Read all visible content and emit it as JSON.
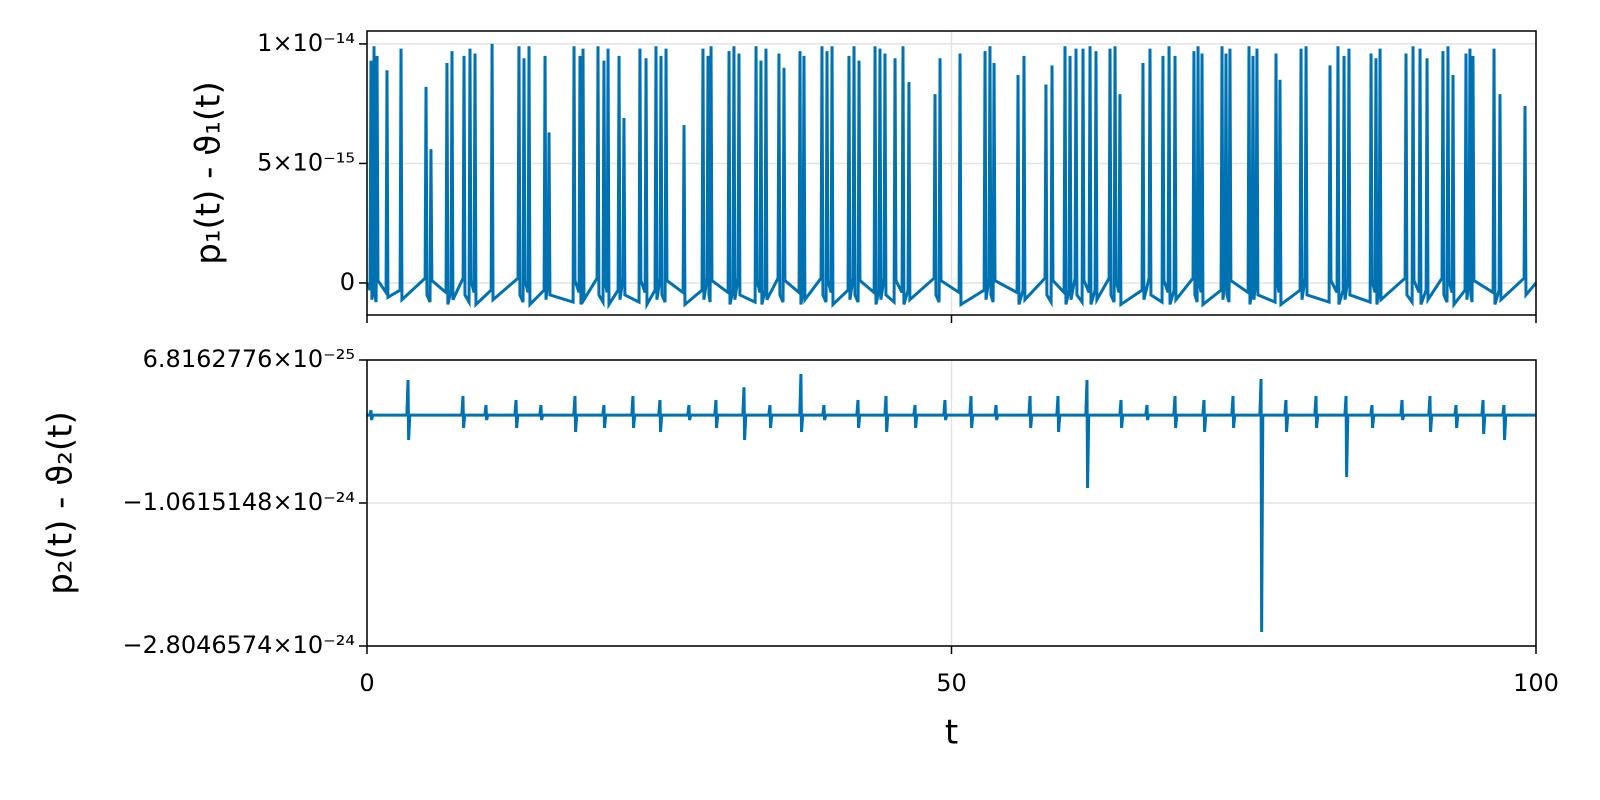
{
  "chart_data": [
    {
      "type": "line",
      "ylabel": "p₁(t) - ϑ₁(t)",
      "color": "#0072b2",
      "grid": true,
      "xlim": [
        0,
        100
      ],
      "xticks": [
        0,
        50,
        100
      ],
      "x_tick_labels": false,
      "ylim": [
        -1.34e-15,
        1.054e-14
      ],
      "yticks": [
        0,
        {
          "value": 5e-15,
          "label": "5×10⁻¹⁵"
        },
        {
          "value": 1e-14,
          "label": "1×10⁻¹⁴"
        }
      ],
      "x": [
        0,
        0.26,
        0.34,
        0.42,
        0.52,
        0.6,
        0.68,
        0.78,
        0.86,
        0.94,
        1.63,
        1.71,
        1.79,
        2.83,
        2.91,
        2.99,
        4.97,
        5.05,
        5.13,
        5.39,
        5.47,
        5.55,
        6.76,
        6.84,
        6.92,
        7.19,
        7.27,
        7.35,
        8.22,
        8.3,
        8.38,
        8.73,
        8.81,
        8.89,
        9.16,
        9.24,
        9.32,
        10.62,
        10.7,
        10.78,
        12.92,
        13.0,
        13.08,
        13.35,
        13.43,
        13.51,
        13.78,
        13.86,
        13.94,
        15.15,
        15.23,
        15.31,
        15.49,
        15.57,
        15.65,
        17.63,
        17.71,
        17.79,
        18.14,
        18.22,
        18.3,
        18.4,
        18.48,
        18.56,
        19.68,
        19.76,
        19.84,
        20.19,
        20.27,
        20.35,
        20.54,
        20.62,
        20.7,
        21.48,
        21.56,
        21.64,
        21.9,
        21.98,
        22.06,
        23.27,
        23.35,
        23.43,
        23.79,
        23.87,
        23.95,
        24.64,
        24.72,
        24.8,
        25.07,
        25.15,
        25.23,
        25.5,
        25.58,
        25.66,
        27.04,
        27.12,
        27.2,
        28.66,
        28.74,
        28.82,
        29.09,
        29.17,
        29.25,
        29.35,
        29.43,
        29.51,
        30.89,
        30.97,
        31.05,
        31.31,
        31.39,
        31.47,
        31.74,
        31.82,
        31.9,
        33.2,
        33.28,
        33.36,
        33.62,
        33.7,
        33.78,
        34.05,
        34.13,
        34.21,
        35.16,
        35.24,
        35.32,
        35.59,
        35.67,
        35.75,
        36.96,
        37.04,
        37.12,
        37.3,
        37.38,
        37.46,
        38.84,
        38.92,
        39.0,
        39.27,
        39.35,
        39.43,
        39.7,
        39.78,
        39.86,
        41.15,
        41.23,
        41.31,
        41.58,
        41.66,
        41.74,
        42.01,
        42.09,
        42.17,
        43.38,
        43.46,
        43.54,
        43.8,
        43.88,
        43.96,
        44.23,
        44.31,
        44.39,
        45.09,
        45.17,
        45.25,
        45.77,
        45.85,
        45.93,
        46.28,
        46.36,
        46.44,
        48.51,
        48.59,
        48.67,
        48.94,
        49.02,
        49.1,
        50.65,
        50.73,
        50.81,
        52.79,
        52.87,
        52.95,
        53.21,
        53.29,
        53.37,
        53.56,
        53.64,
        53.72,
        55.61,
        55.69,
        55.77,
        56.12,
        56.2,
        56.28,
        58.0,
        58.08,
        58.16,
        58.52,
        58.6,
        58.68,
        59.63,
        59.71,
        59.79,
        60.06,
        60.14,
        60.22,
        60.57,
        60.65,
        60.73,
        61.17,
        61.25,
        61.33,
        61.77,
        61.85,
        61.93,
        62.28,
        62.36,
        62.44,
        63.48,
        63.56,
        63.64,
        63.91,
        63.99,
        64.07,
        64.33,
        64.41,
        64.49,
        66.3,
        66.38,
        66.46,
        66.9,
        66.98,
        67.06,
        68.01,
        68.09,
        68.17,
        68.53,
        68.61,
        68.69,
        69.04,
        69.12,
        69.2,
        70.66,
        70.74,
        70.82,
        71.01,
        71.09,
        71.17,
        71.35,
        71.43,
        71.51,
        73.06,
        73.14,
        73.22,
        73.4,
        73.48,
        73.56,
        73.74,
        73.82,
        73.9,
        75.37,
        75.45,
        75.53,
        75.71,
        75.79,
        75.87,
        76.05,
        76.13,
        76.21,
        77.68,
        77.76,
        77.84,
        78.02,
        78.1,
        78.18,
        79.82,
        79.9,
        79.98,
        80.25,
        80.33,
        80.41,
        82.3,
        82.38,
        82.46,
        82.98,
        83.06,
        83.14,
        83.5,
        83.58,
        83.66,
        83.92,
        84.0,
        84.08,
        85.81,
        85.89,
        85.97,
        86.23,
        86.31,
        86.39,
        86.58,
        86.66,
        86.74,
        88.8,
        88.88,
        88.96,
        89.4,
        89.48,
        89.56,
        90.0,
        90.08,
        90.16,
        90.6,
        90.68,
        90.76,
        91.96,
        92.04,
        92.12,
        92.39,
        92.47,
        92.55,
        92.82,
        92.9,
        92.98,
        93.93,
        94.01,
        94.09,
        94.27,
        94.35,
        94.43,
        94.53,
        94.61,
        94.69,
        96.33,
        96.41,
        96.49,
        96.84,
        96.92,
        97.0,
        98.98,
        99.06,
        99.14,
        100
      ],
      "values": [
        0,
        -3e-16,
        9.3e-15,
        -7e-16,
        2e-16,
        9.9e-15,
        -5e-16,
        -8e-16,
        9.5e-15,
        1e-16,
        -4e-16,
        8.9e-15,
        -6e-16,
        -3e-16,
        9.8e-15,
        -7e-16,
        2e-16,
        8.2e-15,
        -5e-16,
        -8e-16,
        5.6e-15,
        1e-16,
        -4e-16,
        9.2e-15,
        -9e-16,
        -3e-16,
        9.7e-15,
        -7e-16,
        2e-16,
        9.5e-15,
        -5e-16,
        -8e-16,
        9.8e-15,
        1e-16,
        -4e-16,
        9.6e-15,
        -9e-16,
        -3e-16,
        1e-14,
        -7e-16,
        2e-16,
        9.9e-15,
        -5e-16,
        -8e-16,
        9.4e-15,
        1e-16,
        -4e-16,
        9.9e-15,
        -9e-16,
        -3e-16,
        9.5e-15,
        -7e-16,
        2e-16,
        6.3e-15,
        -5e-16,
        -8e-16,
        9.9e-15,
        1e-16,
        -4e-16,
        9.5e-15,
        -9e-16,
        -3e-16,
        9.8e-15,
        -7e-16,
        2e-16,
        9.9e-15,
        -5e-16,
        -8e-16,
        9.3e-15,
        1e-16,
        -4e-16,
        9.8e-15,
        -9e-16,
        -3e-16,
        9.5e-15,
        -7e-16,
        2e-16,
        6.9e-15,
        -5e-16,
        -8e-16,
        9.8e-15,
        1e-16,
        -4e-16,
        9.4e-15,
        -9e-16,
        -3e-16,
        9.9e-15,
        -7e-16,
        2e-16,
        9.5e-15,
        -5e-16,
        -8e-16,
        9.8e-15,
        1e-16,
        -4e-16,
        6.6e-15,
        -9e-16,
        -3e-16,
        9.8e-15,
        -7e-16,
        2e-16,
        9.5e-15,
        -5e-16,
        -8e-16,
        9.9e-15,
        1e-16,
        -4e-16,
        9.7e-15,
        -9e-16,
        -3e-16,
        9.9e-15,
        -7e-16,
        2e-16,
        9.6e-15,
        -5e-16,
        -8e-16,
        9.9e-15,
        1e-16,
        -4e-16,
        9.3e-15,
        -9e-16,
        -3e-16,
        9.8e-15,
        -7e-16,
        2e-16,
        9.6e-15,
        -5e-16,
        -8e-16,
        9e-15,
        1e-16,
        -4e-16,
        9.7e-15,
        -9e-16,
        -3e-16,
        9.5e-15,
        -7e-16,
        2e-16,
        9.9e-15,
        -5e-16,
        -8e-16,
        9.7e-15,
        1e-16,
        -4e-16,
        9.9e-15,
        -9e-16,
        -3e-16,
        9.5e-15,
        -7e-16,
        2e-16,
        9.9e-15,
        -5e-16,
        -8e-16,
        9.3e-15,
        1e-16,
        -4e-16,
        9.9e-15,
        -9e-16,
        -3e-16,
        9.8e-15,
        -7e-16,
        2e-16,
        9.6e-15,
        -5e-16,
        -8e-16,
        9.4e-15,
        1e-16,
        -4e-16,
        9.9e-15,
        -9e-16,
        -3e-16,
        8.4e-15,
        -7e-16,
        2e-16,
        7.9e-15,
        -5e-16,
        -8e-16,
        9.4e-15,
        1e-16,
        -4e-16,
        9.6e-15,
        -9e-16,
        -3e-16,
        9.7e-15,
        -7e-16,
        2e-16,
        9.9e-15,
        -5e-16,
        -8e-16,
        9.2e-15,
        1e-16,
        -4e-16,
        8.7e-15,
        -9e-16,
        -3e-16,
        9.5e-15,
        -7e-16,
        2e-16,
        8.3e-15,
        -5e-16,
        -8e-16,
        9.1e-15,
        1e-16,
        -4e-16,
        9.9e-15,
        -9e-16,
        -3e-16,
        9.5e-15,
        -7e-16,
        2e-16,
        9.8e-15,
        -5e-16,
        -8e-16,
        9.8e-15,
        1e-16,
        -4e-16,
        9.9e-15,
        -9e-16,
        -3e-16,
        9.7e-15,
        -7e-16,
        2e-16,
        9.8e-15,
        -5e-16,
        -8e-16,
        9.9e-15,
        1e-16,
        -4e-16,
        7.9e-15,
        -9e-16,
        -3e-16,
        9.2e-15,
        -7e-16,
        2e-16,
        9.8e-15,
        -5e-16,
        -8e-16,
        9.5e-15,
        1e-16,
        -4e-16,
        9.9e-15,
        -9e-16,
        -3e-16,
        9.5e-15,
        -7e-16,
        2e-16,
        9.7e-15,
        -5e-16,
        -8e-16,
        9.9e-15,
        1e-16,
        -4e-16,
        9.6e-15,
        -9e-16,
        -3e-16,
        9.9e-15,
        -7e-16,
        2e-16,
        9.6e-15,
        -5e-16,
        -8e-16,
        9.8e-15,
        1e-16,
        -4e-16,
        9.9e-15,
        -9e-16,
        -3e-16,
        9.5e-15,
        -7e-16,
        2e-16,
        9.8e-15,
        -5e-16,
        -8e-16,
        9.6e-15,
        1e-16,
        -4e-16,
        8.5e-15,
        -9e-16,
        -3e-16,
        9.8e-15,
        -7e-16,
        2e-16,
        9.9e-15,
        -5e-16,
        -8e-16,
        9.1e-15,
        1e-16,
        -4e-16,
        9.9e-15,
        -9e-16,
        -3e-16,
        9.5e-15,
        -7e-16,
        2e-16,
        9.8e-15,
        -5e-16,
        -8e-16,
        9.6e-15,
        1e-16,
        -4e-16,
        9.4e-15,
        -9e-16,
        -3e-16,
        9.8e-15,
        -7e-16,
        2e-16,
        9.6e-15,
        -5e-16,
        -8e-16,
        9.9e-15,
        1e-16,
        -4e-16,
        9.8e-15,
        -9e-16,
        -3e-16,
        9.4e-15,
        -7e-16,
        2e-16,
        9.7e-15,
        -5e-16,
        -8e-16,
        9.9e-15,
        1e-16,
        -4e-16,
        8.7e-15,
        -9e-16,
        -3e-16,
        9.6e-15,
        -7e-16,
        2e-16,
        9.8e-15,
        -5e-16,
        -8e-16,
        9.5e-15,
        1e-16,
        -4e-16,
        9.8e-15,
        -9e-16,
        -3e-16,
        7.9e-15,
        -7e-16,
        2e-16,
        7.4e-15,
        -5e-16,
        0
      ]
    },
    {
      "type": "line",
      "ylabel": "p₂(t) - ϑ₂(t)",
      "xlabel": "t",
      "color": "#0072b2",
      "grid": true,
      "xlim": [
        0,
        100
      ],
      "xticks": [
        0,
        50,
        100
      ],
      "ylim": [
        -2.8046574e-24,
        6.8162776e-25
      ],
      "yticks": [
        {
          "value": -2.8046574e-24,
          "label": "−2.8046574×10⁻²⁴"
        },
        {
          "value": -1.0615148e-24,
          "label": "−1.0615148×10⁻²⁴"
        },
        {
          "value": 6.8162776e-25,
          "label": "6.8162776×10⁻²⁵"
        }
      ],
      "x": [
        0,
        0.24,
        0.34,
        0.39,
        0.49,
        3.41,
        3.51,
        3.56,
        3.66,
        8.11,
        8.21,
        8.26,
        8.36,
        10.08,
        10.18,
        10.23,
        10.33,
        12.65,
        12.75,
        12.8,
        12.9,
        14.78,
        14.88,
        14.93,
        15.03,
        17.69,
        17.79,
        17.84,
        17.94,
        20.17,
        20.27,
        20.32,
        20.42,
        22.65,
        22.75,
        22.8,
        22.9,
        24.96,
        25.06,
        25.11,
        25.21,
        27.44,
        27.54,
        27.59,
        27.69,
        29.75,
        29.85,
        29.9,
        30.0,
        32.15,
        32.25,
        32.3,
        32.4,
        34.37,
        34.47,
        34.52,
        34.62,
        37.02,
        37.12,
        37.17,
        37.27,
        38.99,
        39.09,
        39.14,
        39.24,
        41.9,
        42.0,
        42.05,
        42.15,
        44.3,
        44.4,
        44.45,
        44.55,
        46.78,
        46.88,
        46.93,
        47.03,
        49.34,
        49.44,
        49.49,
        49.59,
        51.57,
        51.67,
        51.72,
        51.82,
        53.71,
        53.81,
        53.86,
        53.96,
        56.62,
        56.72,
        56.77,
        56.87,
        59.01,
        59.11,
        59.16,
        59.26,
        61.49,
        61.59,
        61.64,
        61.74,
        64.4,
        64.5,
        64.55,
        64.65,
        66.62,
        66.72,
        66.77,
        66.87,
        69.02,
        69.12,
        69.17,
        69.27,
        71.5,
        71.6,
        71.65,
        71.75,
        73.98,
        74.08,
        74.13,
        74.23,
        76.38,
        76.48,
        76.53,
        76.63,
        78.51,
        78.61,
        78.66,
        78.76,
        81.08,
        81.18,
        81.23,
        81.33,
        83.65,
        83.75,
        83.8,
        83.9,
        85.87,
        85.97,
        86.02,
        86.12,
        88.44,
        88.54,
        88.59,
        88.69,
        90.83,
        90.93,
        90.98,
        91.08,
        93.06,
        93.16,
        93.21,
        93.31,
        95.37,
        95.47,
        95.52,
        95.62,
        97.16,
        97.26,
        97.31,
        97.41,
        100
      ],
      "values": [
        1e-26,
        1e-26,
        7e-26,
        -5e-26,
        1e-26,
        1e-26,
        4.38e-25,
        -2.94e-25,
        1e-26,
        1e-26,
        2.43e-25,
        -1.47e-25,
        1e-26,
        1e-26,
        1.33e-25,
        -5e-26,
        1e-26,
        1e-26,
        1.94e-25,
        -1.47e-25,
        1e-26,
        1e-26,
        1.33e-25,
        -5e-26,
        1e-26,
        1e-26,
        2.43e-25,
        -1.96e-25,
        1e-26,
        1e-26,
        1.33e-25,
        -1.47e-25,
        1e-26,
        1e-26,
        2.43e-25,
        -1.47e-25,
        1e-26,
        1e-26,
        1.94e-25,
        -1.96e-25,
        1e-26,
        1e-26,
        1.33e-25,
        -5e-26,
        1e-26,
        1e-26,
        1.94e-25,
        -1.47e-25,
        1e-26,
        1e-26,
        3.5e-25,
        -2.94e-25,
        1e-26,
        1e-26,
        1.33e-25,
        -1.47e-25,
        1e-26,
        1e-26,
        5.11e-25,
        -1.96e-25,
        1e-26,
        1e-26,
        1.33e-25,
        -5e-26,
        1e-26,
        1e-26,
        1.94e-25,
        -1.47e-25,
        1e-26,
        1e-26,
        2.43e-25,
        -1.96e-25,
        1e-26,
        1e-26,
        1.33e-25,
        -1.47e-25,
        1e-26,
        1e-26,
        1.94e-25,
        -5e-26,
        1e-26,
        1e-26,
        2.43e-25,
        -1.47e-25,
        1e-26,
        1e-26,
        1.33e-25,
        -5e-26,
        1e-26,
        1e-26,
        2.43e-25,
        -1.47e-25,
        1e-26,
        1e-26,
        2.43e-25,
        -1.96e-25,
        1e-26,
        1e-26,
        4.38e-25,
        -8.79e-25,
        1e-26,
        1e-26,
        1.94e-25,
        -1.47e-25,
        1e-26,
        1e-26,
        1.33e-25,
        -5e-26,
        1e-26,
        1e-26,
        2.43e-25,
        -1.47e-25,
        1e-26,
        1e-26,
        1.94e-25,
        -1.96e-25,
        1e-26,
        1e-26,
        2.43e-25,
        -1.47e-25,
        1e-26,
        1e-26,
        4.5e-25,
        -2.634e-24,
        1e-26,
        1e-26,
        1.94e-25,
        -1.96e-25,
        1e-26,
        1e-26,
        2.43e-25,
        -1.47e-25,
        1e-26,
        1e-26,
        2.43e-25,
        -7.45e-25,
        1e-26,
        1e-26,
        1.33e-25,
        -1.47e-25,
        1e-26,
        1e-26,
        1.94e-25,
        -5e-26,
        1e-26,
        1e-26,
        2.43e-25,
        -1.96e-25,
        1e-26,
        1e-26,
        1.33e-25,
        -1.47e-25,
        1e-26,
        1e-26,
        1.94e-25,
        -2.2e-25,
        1e-26,
        1e-26,
        1.33e-25,
        -2.94e-25,
        1e-26,
        1e-26
      ]
    }
  ]
}
